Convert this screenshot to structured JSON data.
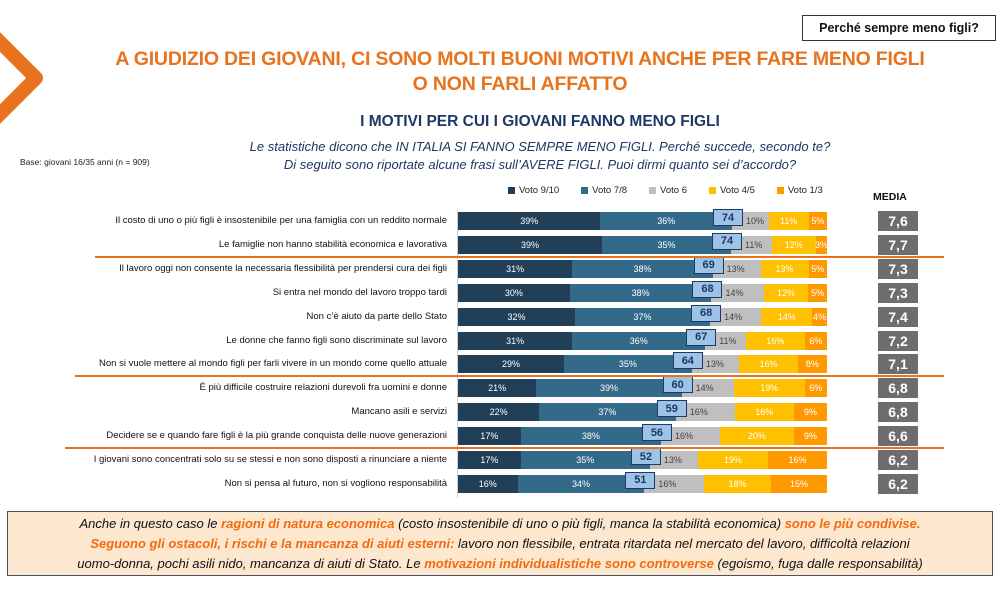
{
  "header": {
    "tag": "Perché sempre meno figli?",
    "title_line1": "A GIUDIZIO DEI GIOVANI, CI SONO MOLTI BUONI MOTIVI ANCHE PER FARE MENO FIGLI",
    "title_line2": "O NON FARLI AFFATTO",
    "subtitle": "I MOTIVI PER CUI I GIOVANI FANNO MENO FIGLI",
    "question_line1": "Le statistiche dicono che IN ITALIA SI FANNO SEMPRE MENO FIGLI. Perché succede, secondo te?",
    "question_line2": "Di seguito sono riportate alcune frasi sull’AVERE FIGLI. Puoi dirmi quanto sei d’accordo?",
    "base": "Base: giovani 16/35 anni (n = 909)",
    "media_label": "MEDIA"
  },
  "colors": {
    "accent": "#E8731E",
    "title_blue": "#1F3864",
    "voto_9_10": "#213F57",
    "voto_7_8": "#336A8A",
    "voto_6": "#BFBFBF",
    "voto_4_5": "#FFC000",
    "voto_1_3": "#FF9900",
    "total_box": "#9DC3E6",
    "media_box": "#6D6D6D",
    "note_bg": "#FDE7CF"
  },
  "chart_data": {
    "type": "bar",
    "orientation": "horizontal",
    "stacked": true,
    "title": "I MOTIVI PER CUI I GIOVANI FANNO MENO FIGLI",
    "xlabel": "",
    "ylabel": "",
    "xlim": [
      0,
      100
    ],
    "unit": "%",
    "legend_position": "top",
    "categories": [
      "Il costo di uno o più figli è insostenibile per una famiglia con un reddito normale",
      "Le famiglie non hanno stabilità economica e lavorativa",
      "Il lavoro oggi non consente la necessaria flessibilità per prendersi cura dei figli",
      "Si entra nel mondo del lavoro troppo tardi",
      "Non c’è aiuto da parte dello Stato",
      "Le donne che fanno figli sono discriminate sul lavoro",
      "Non si vuole mettere al mondo figli per farli vivere in un mondo come quello attuale",
      "È più difficile costruire relazioni durevoli fra uomini e donne",
      "Mancano asili e servizi",
      "Decidere se e quando fare figli è la più grande conquista delle nuove generazioni",
      "I giovani sono concentrati solo su se stessi e non sono disposti a rinunciare a niente",
      "Non si pensa al futuro, non si vogliono responsabilità"
    ],
    "series": [
      {
        "name": "Voto 9/10",
        "values": [
          39,
          39,
          31,
          30,
          32,
          31,
          29,
          21,
          22,
          17,
          17,
          16
        ]
      },
      {
        "name": "Voto 7/8",
        "values": [
          36,
          35,
          38,
          38,
          37,
          36,
          35,
          39,
          37,
          38,
          35,
          34
        ]
      },
      {
        "name": "Voto 6",
        "values": [
          10,
          11,
          13,
          14,
          14,
          11,
          13,
          14,
          16,
          16,
          13,
          16
        ]
      },
      {
        "name": "Voto 4/5",
        "values": [
          11,
          12,
          13,
          12,
          14,
          16,
          16,
          19,
          16,
          20,
          19,
          18
        ]
      },
      {
        "name": "Voto 1/3",
        "values": [
          5,
          3,
          5,
          5,
          4,
          6,
          8,
          6,
          9,
          9,
          16,
          15
        ]
      }
    ],
    "totals_top2": [
      74,
      74,
      69,
      68,
      68,
      67,
      64,
      60,
      59,
      56,
      52,
      51
    ],
    "media": [
      "7,6",
      "7,7",
      "7,3",
      "7,3",
      "7,4",
      "7,2",
      "7,1",
      "6,8",
      "6,8",
      "6,6",
      "6,2",
      "6,2"
    ],
    "separators_after_rows": [
      2,
      7,
      10
    ]
  },
  "note": {
    "segments": [
      {
        "text": "Anche in questo caso le ",
        "hl": false
      },
      {
        "text": "ragioni di natura economica",
        "hl": true
      },
      {
        "text": " (costo insostenibile di uno o più figli, manca la stabilità economica) ",
        "hl": false
      },
      {
        "text": "sono le più condivise.",
        "hl": true
      },
      {
        "text": "\n",
        "hl": false
      },
      {
        "text": "Seguono gli ostacoli, i rischi e la mancanza di aiuti esterni:",
        "hl": true
      },
      {
        "text": " lavoro non flessibile, entrata ritardata nel mercato del lavoro, difficoltà relazioni",
        "hl": false
      },
      {
        "text": "\n",
        "hl": false
      },
      {
        "text": "uomo-donna, pochi asili nido, mancanza di aiuti di Stato. Le ",
        "hl": false
      },
      {
        "text": "motivazioni individualistiche sono controverse",
        "hl": true
      },
      {
        "text": " (egoismo, fuga dalle responsabilità)",
        "hl": false
      }
    ]
  }
}
